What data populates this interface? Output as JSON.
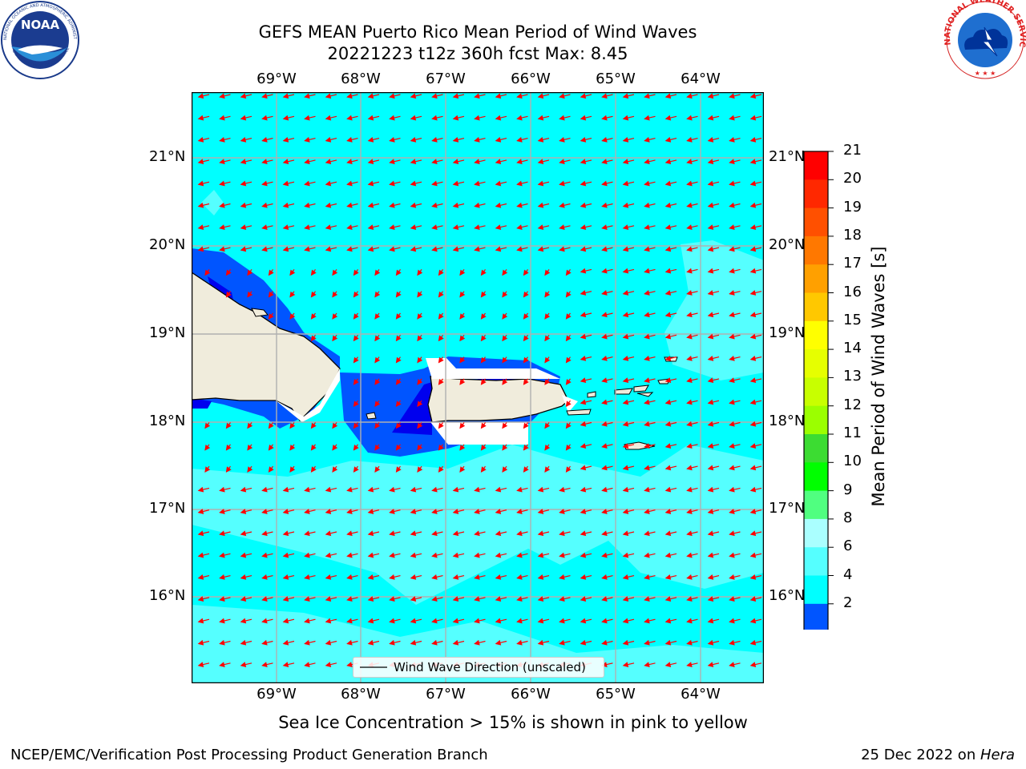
{
  "title": {
    "line1": "GEFS MEAN Puerto Rico Mean Period of Wind Waves",
    "line2": "20221223 t12z 360h fcst   Max: 8.45"
  },
  "map": {
    "lon_labels": [
      "69°W",
      "68°W",
      "67°W",
      "66°W",
      "65°W",
      "64°W"
    ],
    "lat_labels": [
      "21°N",
      "20°N",
      "19°N",
      "18°N",
      "17°N",
      "16°N"
    ],
    "legend_label": "Wind Wave Direction (unscaled)",
    "colors": {
      "ocean_6_8": "#00ffff",
      "ocean_8_9": "#55ffff",
      "ocean_4_6": "#0055ff",
      "ocean_2_4": "#0000ee",
      "land": "#f0ecdc",
      "arrow": "#ff0000",
      "grid": "#b0b0b0"
    },
    "arrow_direction": "toward southwest"
  },
  "colorbar": {
    "label": "Mean Period of Wind Waves [s]",
    "ticks": [
      "21",
      "20",
      "19",
      "18",
      "17",
      "16",
      "15",
      "14",
      "13",
      "12",
      "11",
      "10",
      "9",
      "8",
      "6",
      "4",
      "2"
    ],
    "colors": [
      "#ff0000",
      "#ff2800",
      "#ff5000",
      "#ff7800",
      "#ffa000",
      "#ffc800",
      "#ffff00",
      "#e6ff00",
      "#c8ff00",
      "#9bff00",
      "#3cdc32",
      "#00ff00",
      "#50ff80",
      "#aaffff",
      "#55ffff",
      "#00ffff",
      "#0055ff"
    ],
    "under_color": "#0000ee"
  },
  "subtitle": "Sea Ice Concentration > 15% is shown in pink to yellow",
  "footer": {
    "left": "NCEP/EMC/Verification Post Processing Product Generation Branch",
    "right_date": "25 Dec 2022 on ",
    "right_host": "Hera"
  },
  "logos": {
    "noaa_text": "NOAA",
    "noaa_ring": "NATIONAL OCEANIC AND ATMOSPHERIC ADMINISTRATION",
    "noaa_ring_bottom": "U.S. DEPARTMENT OF COMMERCE",
    "nws_ring": "NATIONAL WEATHER SERVICE"
  }
}
